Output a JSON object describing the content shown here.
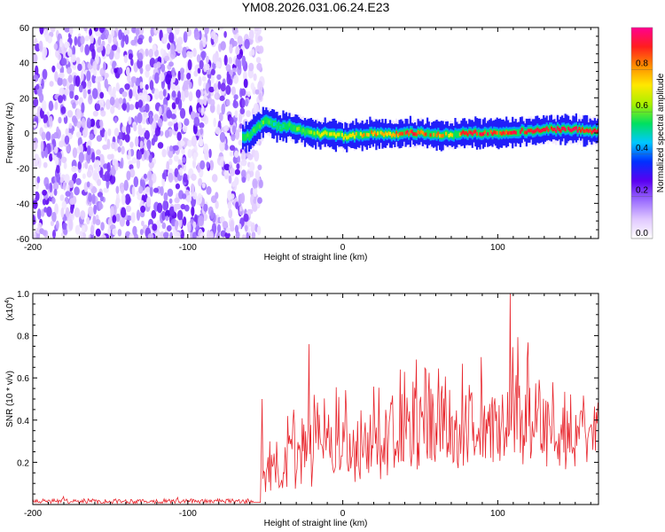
{
  "title": "YM08.2026.031.06.24.E23",
  "chart_data": [
    {
      "type": "heatmap",
      "panel": "spectrogram",
      "title": "YM08.2026.031.06.24.E23",
      "xlabel": "Height of straight line (km)",
      "ylabel": "Frequency (Hz)",
      "xlim": [
        -200,
        165
      ],
      "ylim": [
        -60,
        60
      ],
      "xticks": [
        -200,
        -100,
        0,
        100
      ],
      "xtick_labels": [
        "-200",
        "-100",
        "0",
        "100"
      ],
      "yticks": [
        -60,
        -40,
        -20,
        0,
        20,
        40,
        60
      ],
      "ytick_labels": [
        "-60",
        "-40",
        "-20",
        "0",
        "20",
        "40",
        "60"
      ],
      "noise_region_x": [
        -200,
        -55
      ],
      "signal_start_x": -65,
      "ridge": {
        "x": [
          -65,
          -60,
          -55,
          -50,
          -45,
          -40,
          -35,
          -30,
          -25,
          -20,
          -15,
          -10,
          -5,
          0,
          10,
          20,
          30,
          40,
          50,
          60,
          70,
          80,
          90,
          100,
          110,
          120,
          130,
          140,
          150,
          160,
          165
        ],
        "freq": [
          -3,
          -1,
          4,
          7,
          5,
          3,
          4,
          2,
          1,
          0,
          -1,
          0,
          -1,
          -2,
          -1,
          0,
          -1,
          0,
          0,
          -1,
          -1,
          0,
          0,
          0,
          1,
          1,
          2,
          2,
          2,
          1,
          1
        ],
        "intensity": [
          0.4,
          0.5,
          0.5,
          0.5,
          0.45,
          0.45,
          0.5,
          0.55,
          0.55,
          0.6,
          0.6,
          0.65,
          0.6,
          0.65,
          0.7,
          0.75,
          0.7,
          0.85,
          0.8,
          0.75,
          0.7,
          0.85,
          0.85,
          0.8,
          0.85,
          0.9,
          0.85,
          0.9,
          0.9,
          0.85,
          0.85
        ]
      },
      "colorbar": {
        "label": "Normalized spectral amplitude",
        "range": [
          0.0,
          1.0
        ],
        "ticks": [
          0.0,
          0.2,
          0.4,
          0.6,
          0.8
        ],
        "tick_labels": [
          "0.0",
          "0.2",
          "0.4",
          "0.6",
          "0.8"
        ],
        "colors": [
          "#ffffff",
          "#e0c8ff",
          "#9a6bff",
          "#5a00f0",
          "#0030ff",
          "#00c8ff",
          "#00e060",
          "#a8f000",
          "#ffe800",
          "#ff8c00",
          "#ff1e1e",
          "#ff0090"
        ]
      }
    },
    {
      "type": "line",
      "panel": "snr",
      "xlabel": "Height of straight line (km)",
      "ylabel": "SNR (10 * v/v)",
      "scale_label_prefix": "(x10",
      "scale_label_exp": "4",
      "scale_label_suffix": ")",
      "xlim": [
        -200,
        165
      ],
      "ylim": [
        0,
        1.0
      ],
      "xticks": [
        -200,
        -100,
        0,
        100
      ],
      "xtick_labels": [
        "-200",
        "-100",
        "0",
        "100"
      ],
      "yticks": [
        0.2,
        0.4,
        0.6,
        0.8,
        1.0
      ],
      "ytick_labels": [
        "0.2",
        "0.4",
        "0.6",
        "0.8",
        "1.0"
      ],
      "color": "#e8272e",
      "envelope": {
        "x": [
          -200,
          -70,
          -60,
          -55,
          -50,
          -40,
          -30,
          -20,
          -10,
          0,
          10,
          20,
          30,
          40,
          50,
          60,
          70,
          80,
          90,
          100,
          110,
          120,
          130,
          140,
          150,
          160,
          165
        ],
        "baseline": [
          0.01,
          0.01,
          0.01,
          0.04,
          0.08,
          0.12,
          0.16,
          0.2,
          0.22,
          0.24,
          0.22,
          0.22,
          0.24,
          0.24,
          0.24,
          0.26,
          0.24,
          0.24,
          0.26,
          0.26,
          0.28,
          0.3,
          0.3,
          0.28,
          0.26,
          0.28,
          0.3
        ],
        "peak": [
          0.03,
          0.03,
          0.04,
          0.1,
          0.5,
          0.32,
          0.76,
          0.64,
          0.62,
          0.74,
          0.58,
          0.62,
          0.7,
          0.78,
          0.82,
          0.72,
          0.8,
          0.8,
          0.86,
          0.76,
          1.0,
          0.9,
          0.72,
          0.68,
          0.66,
          0.62,
          0.6
        ]
      },
      "annotations": [
        {
          "x": -52,
          "y": 0.5
        },
        {
          "x": -22,
          "y": 0.76
        },
        {
          "x": 108,
          "y": 1.0
        }
      ]
    }
  ]
}
